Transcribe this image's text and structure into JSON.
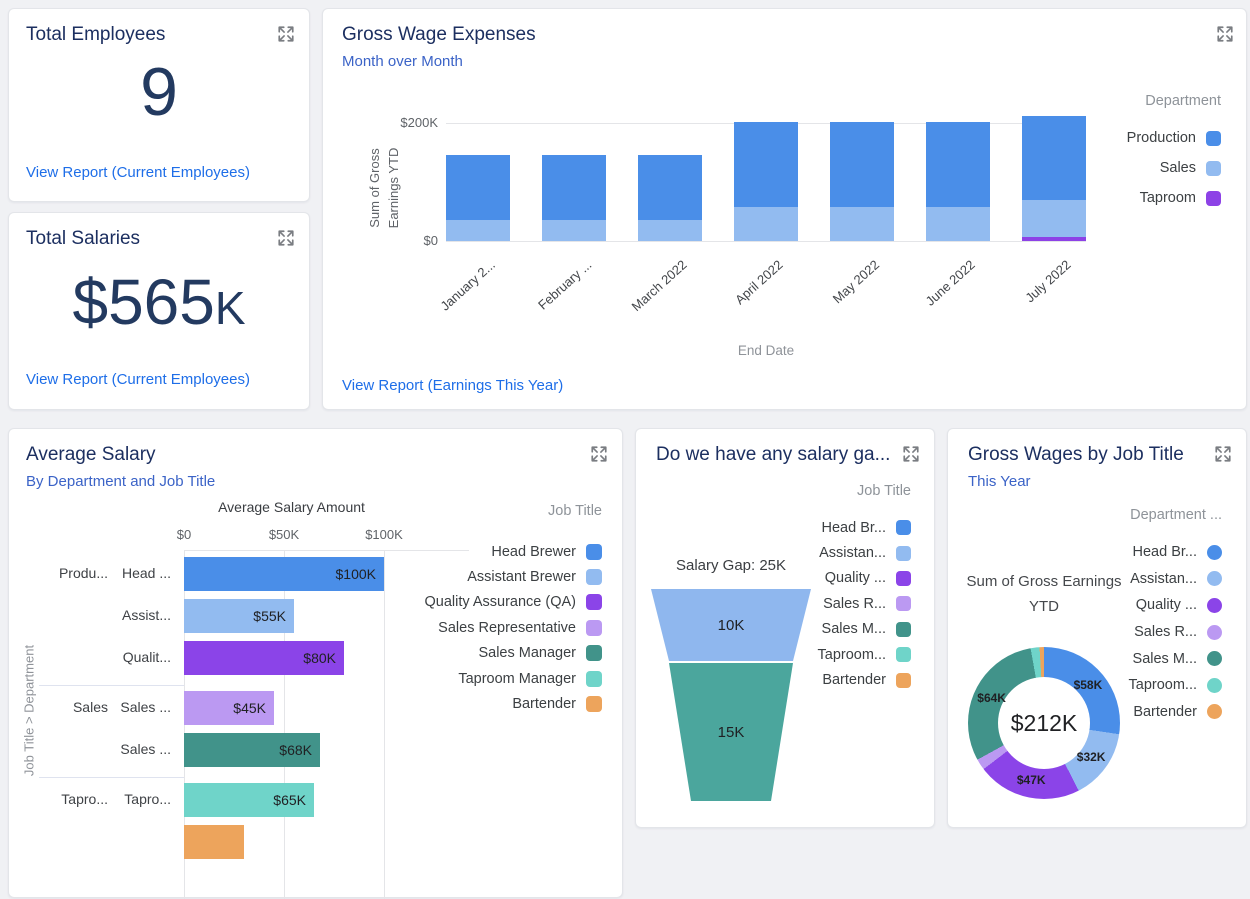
{
  "colors": {
    "card_title": "#1c2f60",
    "subtitle": "#3b63c7",
    "link": "#1e6ee8",
    "kpi": "#233a60",
    "legend_header": "#8e9399",
    "legend_label": "#3c4043",
    "axis_tick": "#5f6368",
    "axis_title": "#8f9399",
    "grid": "#e4e5e8",
    "page_bg": "#f0f1f4",
    "series_blue": "#4a8ee8",
    "series_light_blue": "#92bbf0",
    "series_purple": "#8b44e8",
    "series_light_purple": "#bb99f2",
    "series_teal": "#41938a",
    "series_light_teal": "#6fd4c9",
    "series_orange": "#eda45c"
  },
  "cards": {
    "total_employees": {
      "title": "Total Employees",
      "value": "9",
      "link": "View Report (Current Employees)"
    },
    "total_salaries": {
      "title": "Total Salaries",
      "value_main": "$565",
      "value_suffix": "K",
      "link": "View Report (Current Employees)"
    },
    "gross_wage_expenses": {
      "title": "Gross Wage Expenses",
      "subtitle": "Month over Month",
      "link": "View Report (Earnings This Year)"
    },
    "average_salary": {
      "title": "Average Salary",
      "subtitle": "By Department and Job Title"
    },
    "salary_gap": {
      "title": "Do we have any salary ga..."
    },
    "gross_wages_by_job_title": {
      "title": "Gross Wages by Job Title",
      "subtitle": "This Year"
    }
  },
  "chart_data": [
    {
      "id": "gross_wage_expenses",
      "type": "bar",
      "stacked": true,
      "title": "Gross Wage Expenses",
      "subtitle": "Month over Month",
      "xlabel": "End Date",
      "ylabel_lines": [
        "Sum of Gross",
        "Earnings YTD"
      ],
      "unit": "thousand USD",
      "ylim": [
        0,
        200
      ],
      "y_ticks": [
        {
          "label": "$200K",
          "value": 200
        },
        {
          "label": "$0",
          "value": 0
        }
      ],
      "categories": [
        "January 2...",
        "February ...",
        "March 2022",
        "April 2022",
        "May 2022",
        "June 2022",
        "July 2022"
      ],
      "legend_title": "Department",
      "legend_position": "right",
      "series": [
        {
          "name": "Production",
          "color": "#4a8ee8",
          "values": [
            109,
            109,
            109,
            145,
            145,
            145,
            143
          ]
        },
        {
          "name": "Sales",
          "color": "#92bbf0",
          "values": [
            36,
            36,
            36,
            57,
            57,
            57,
            62
          ]
        },
        {
          "name": "Taproom",
          "color": "#8d42e6",
          "values": [
            0,
            0,
            0,
            0,
            0,
            0,
            7
          ]
        }
      ]
    },
    {
      "id": "average_salary",
      "type": "bar",
      "orientation": "horizontal",
      "title": "Average Salary",
      "subtitle": "By Department and Job Title",
      "axis_title": "Average Salary Amount",
      "unit": "thousand USD",
      "xlim": [
        0,
        100
      ],
      "x_ticks": [
        {
          "label": "$0",
          "value": 0
        },
        {
          "label": "$50K",
          "value": 50
        },
        {
          "label": "$100K",
          "value": 100
        }
      ],
      "group_axis_label": "Job Title  >  Department",
      "legend_title": "Job Title",
      "legend_position": "right",
      "rows": [
        {
          "dept": "Produ...",
          "job": "Head ...",
          "value": 100,
          "value_label": "$100K",
          "color": "#4a8ee8",
          "group_start": true
        },
        {
          "dept": "",
          "job": "Assist...",
          "value": 55,
          "value_label": "$55K",
          "color": "#92bbf0",
          "group_start": false
        },
        {
          "dept": "",
          "job": "Qualit...",
          "value": 80,
          "value_label": "$80K",
          "color": "#8b44e8",
          "group_start": false
        },
        {
          "dept": "Sales",
          "job": "Sales ...",
          "value": 45,
          "value_label": "$45K",
          "color": "#bb99f2",
          "group_start": true
        },
        {
          "dept": "",
          "job": "Sales ...",
          "value": 68,
          "value_label": "$68K",
          "color": "#41938a",
          "group_start": false
        },
        {
          "dept": "Tapro...",
          "job": "Tapro...",
          "value": 65,
          "value_label": "$65K",
          "color": "#6fd4c9",
          "group_start": true
        },
        {
          "dept": "",
          "job": "",
          "value": 30,
          "value_label": "",
          "color": "#eda45c",
          "group_start": false
        }
      ],
      "legend": [
        {
          "label": "Head Brewer",
          "color": "#4a8ee8"
        },
        {
          "label": "Assistant Brewer",
          "color": "#92bbf0"
        },
        {
          "label": "Quality Assurance (QA)",
          "color": "#8b44e8"
        },
        {
          "label": "Sales Representative",
          "color": "#bb99f2"
        },
        {
          "label": "Sales Manager",
          "color": "#41938a"
        },
        {
          "label": "Taproom Manager",
          "color": "#6fd4c9"
        },
        {
          "label": "Bartender",
          "color": "#eda45c"
        }
      ]
    },
    {
      "id": "salary_gap_funnel",
      "type": "funnel",
      "title": "Do we have any salary ga...",
      "annotation": "Salary Gap: 25K",
      "unit": "thousand USD",
      "legend_title": "Job Title",
      "legend_position": "right",
      "segments": [
        {
          "label": "10K",
          "value": 10,
          "color": "#8fb7ee"
        },
        {
          "label": "15K",
          "value": 15,
          "color": "#4ba69d"
        }
      ],
      "legend": [
        {
          "label": "Head Br...",
          "color": "#4a8ee8"
        },
        {
          "label": "Assistan...",
          "color": "#92bbf0"
        },
        {
          "label": "Quality ...",
          "color": "#8b44e8"
        },
        {
          "label": "Sales R...",
          "color": "#bb99f2"
        },
        {
          "label": "Sales M...",
          "color": "#41938a"
        },
        {
          "label": "Taproom...",
          "color": "#6fd4c9"
        },
        {
          "label": "Bartender",
          "color": "#eda45c"
        }
      ]
    },
    {
      "id": "gross_wages_donut",
      "type": "pie",
      "title": "Gross Wages by Job Title",
      "subtitle": "This Year",
      "chart_caption_lines": [
        "Sum of Gross Earnings",
        "YTD"
      ],
      "center_label": "$212K",
      "unit": "thousand USD",
      "legend_title": "Department ...",
      "legend_position": "right",
      "slices": [
        {
          "name": "Head Br...",
          "value": 58,
          "label": "$58K",
          "color": "#4a8ee8"
        },
        {
          "name": "Assistan...",
          "value": 32,
          "label": "$32K",
          "color": "#92bbf0"
        },
        {
          "name": "Quality ...",
          "value": 47,
          "label": "$47K",
          "color": "#8b44e8"
        },
        {
          "name": "Sales R...",
          "value": 5,
          "label": "",
          "color": "#bb99f2"
        },
        {
          "name": "Sales M...",
          "value": 64,
          "label": "$64K",
          "color": "#41938a"
        },
        {
          "name": "Taproom...",
          "value": 4,
          "label": "",
          "color": "#6fd4c9"
        },
        {
          "name": "Bartender",
          "value": 2,
          "label": "",
          "color": "#eda45c"
        }
      ]
    }
  ]
}
